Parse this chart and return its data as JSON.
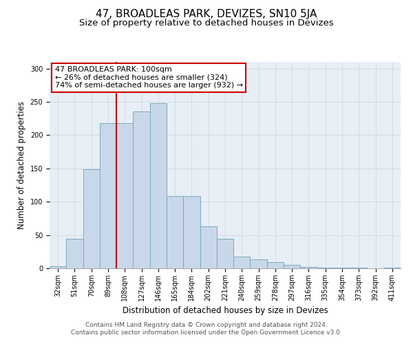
{
  "title": "47, BROADLEAS PARK, DEVIZES, SN10 5JA",
  "subtitle": "Size of property relative to detached houses in Devizes",
  "xlabel": "Distribution of detached houses by size in Devizes",
  "ylabel": "Number of detached properties",
  "bar_labels": [
    "32sqm",
    "51sqm",
    "70sqm",
    "89sqm",
    "108sqm",
    "127sqm",
    "146sqm",
    "165sqm",
    "184sqm",
    "202sqm",
    "221sqm",
    "240sqm",
    "259sqm",
    "278sqm",
    "297sqm",
    "316sqm",
    "335sqm",
    "354sqm",
    "373sqm",
    "392sqm",
    "411sqm"
  ],
  "bar_values": [
    3,
    44,
    149,
    218,
    218,
    236,
    248,
    109,
    109,
    63,
    44,
    18,
    13,
    9,
    5,
    2,
    1,
    1,
    1,
    0,
    1
  ],
  "bar_color": "#c8d8ea",
  "bar_edge_color": "#7aaabb",
  "background_color": "#ffffff",
  "plot_bg_color": "#e8eef5",
  "grid_color": "#d0d8e0",
  "ylim": [
    0,
    310
  ],
  "yticks": [
    0,
    50,
    100,
    150,
    200,
    250,
    300
  ],
  "annotation_box_text_line1": "47 BROADLEAS PARK: 100sqm",
  "annotation_box_text_line2": "← 26% of detached houses are smaller (324)",
  "annotation_box_text_line3": "74% of semi-detached houses are larger (932) →",
  "property_line_x": 3.5,
  "annotation_box_color": "#ffffff",
  "annotation_box_edge_color": "#cc0000",
  "property_line_color": "#cc0000",
  "footer_line1": "Contains HM Land Registry data © Crown copyright and database right 2024.",
  "footer_line2": "Contains public sector information licensed under the Open Government Licence v3.0.",
  "title_fontsize": 11,
  "subtitle_fontsize": 9.5,
  "axis_label_fontsize": 8.5,
  "tick_fontsize": 7,
  "annotation_fontsize": 8,
  "footer_fontsize": 6.5
}
